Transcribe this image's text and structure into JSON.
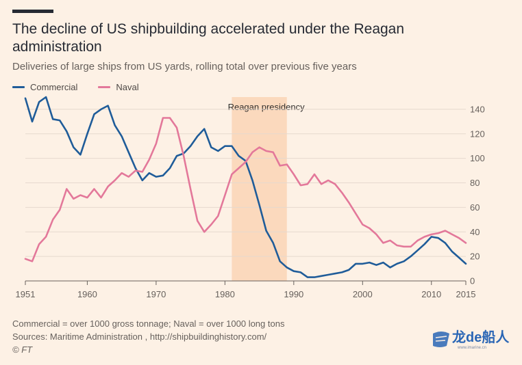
{
  "header": {
    "title": "The decline of US shipbuilding accelerated under the Reagan administration",
    "subtitle": "Deliveries of large ships from US yards, rolling total over previous five years"
  },
  "legend": {
    "items": [
      {
        "label": "Commercial",
        "color": "#1f5c99"
      },
      {
        "label": "Naval",
        "color": "#e3789a"
      }
    ]
  },
  "footer": {
    "note": "Commercial = over 1000 gross tonnage; Naval = over 1000 long tons",
    "sources": "Sources: Maritime Administration , http://shipbuildinghistory.com/",
    "copyright": "© FT"
  },
  "watermark": {
    "text": "龙de船人",
    "url": "www.imarine.cn",
    "color": "#2a66b5"
  },
  "chart_data": {
    "type": "line",
    "title": "The decline of US shipbuilding accelerated under the Reagan administration",
    "subtitle": "Deliveries of large ships from US yards, rolling total over previous five years",
    "xlim": [
      1951,
      2015
    ],
    "ylim": [
      0,
      150
    ],
    "x_ticks": [
      1951,
      1960,
      1970,
      1980,
      1990,
      2000,
      2010,
      2015
    ],
    "y_ticks": [
      0,
      20,
      40,
      60,
      80,
      100,
      120,
      140
    ],
    "y_axis_position": "right",
    "grid": "horizontal",
    "legend_position": "top-left",
    "annotations": [
      {
        "label": "Reagan presidency",
        "x_start": 1981,
        "x_end": 1989,
        "color": "#fbd9bd"
      }
    ],
    "series": [
      {
        "name": "Commercial",
        "color": "#1f5c99",
        "x": [
          1951,
          1952,
          1953,
          1954,
          1955,
          1956,
          1957,
          1958,
          1959,
          1960,
          1961,
          1962,
          1963,
          1964,
          1965,
          1966,
          1967,
          1968,
          1969,
          1970,
          1971,
          1972,
          1973,
          1974,
          1975,
          1976,
          1977,
          1978,
          1979,
          1980,
          1981,
          1982,
          1983,
          1984,
          1985,
          1986,
          1987,
          1988,
          1989,
          1990,
          1991,
          1992,
          1993,
          1994,
          1995,
          1996,
          1997,
          1998,
          1999,
          2000,
          2001,
          2002,
          2003,
          2004,
          2005,
          2006,
          2007,
          2008,
          2009,
          2010,
          2011,
          2012,
          2013,
          2014,
          2015
        ],
        "y": [
          149,
          130,
          146,
          150,
          132,
          131,
          122,
          109,
          103,
          120,
          136,
          140,
          143,
          127,
          118,
          105,
          92,
          82,
          88,
          85,
          86,
          92,
          102,
          104,
          110,
          118,
          124,
          109,
          106,
          110,
          110,
          102,
          98,
          82,
          62,
          41,
          31,
          16,
          11,
          8,
          7,
          3,
          3,
          4,
          5,
          6,
          7,
          9,
          14,
          14,
          15,
          13,
          15,
          11,
          14,
          16,
          20,
          25,
          30,
          36,
          35,
          31,
          24,
          19,
          14
        ]
      },
      {
        "name": "Naval",
        "color": "#e3789a",
        "x": [
          1951,
          1952,
          1953,
          1954,
          1955,
          1956,
          1957,
          1958,
          1959,
          1960,
          1961,
          1962,
          1963,
          1964,
          1965,
          1966,
          1967,
          1968,
          1969,
          1970,
          1971,
          1972,
          1973,
          1974,
          1975,
          1976,
          1977,
          1978,
          1979,
          1980,
          1981,
          1982,
          1983,
          1984,
          1985,
          1986,
          1987,
          1988,
          1989,
          1990,
          1991,
          1992,
          1993,
          1994,
          1995,
          1996,
          1997,
          1998,
          1999,
          2000,
          2001,
          2002,
          2003,
          2004,
          2005,
          2006,
          2007,
          2008,
          2009,
          2010,
          2011,
          2012,
          2013,
          2014,
          2015
        ],
        "y": [
          18,
          16,
          30,
          36,
          50,
          58,
          75,
          67,
          70,
          68,
          75,
          68,
          77,
          82,
          88,
          85,
          90,
          89,
          99,
          112,
          133,
          133,
          125,
          102,
          75,
          49,
          40,
          46,
          53,
          70,
          87,
          92,
          97,
          105,
          109,
          106,
          105,
          94,
          95,
          87,
          78,
          79,
          87,
          79,
          82,
          79,
          72,
          64,
          55,
          46,
          43,
          38,
          31,
          33,
          29,
          28,
          28,
          33,
          36,
          38,
          39,
          41,
          38,
          35,
          31
        ]
      }
    ]
  }
}
